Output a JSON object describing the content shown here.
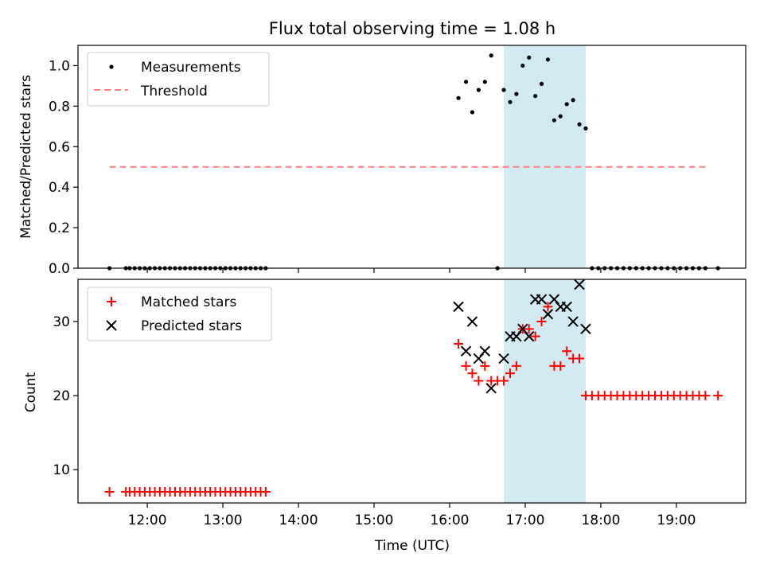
{
  "figure": {
    "title": "Flux total observing time = 1.08 h",
    "xlabel": "Time (UTC)"
  },
  "colors": {
    "highlight": "#add8e6",
    "measurement": "#000000",
    "threshold": "#ff7f7f",
    "matched": "#ff0000",
    "predicted": "#000000"
  },
  "chart_data": [
    {
      "type": "scatter",
      "ylabel": "Matched/Predicted stars",
      "xlim": [
        "11:05",
        "19:55"
      ],
      "ylim": [
        0,
        1.1
      ],
      "yticks": [
        0.0,
        0.2,
        0.4,
        0.6,
        0.8,
        1.0
      ],
      "xticks": [
        "12:00",
        "13:00",
        "14:00",
        "15:00",
        "16:00",
        "17:00",
        "18:00",
        "19:00"
      ],
      "show_xtick_labels": false,
      "legend": {
        "position": "top-left",
        "entries": [
          "Measurements",
          "Threshold"
        ]
      },
      "highlight_span": {
        "x": [
          "16:43",
          "17:48"
        ]
      },
      "threshold": {
        "name": "Threshold",
        "y": 0.5,
        "x": [
          "11:30",
          "19:25"
        ]
      },
      "series": [
        {
          "name": "Measurements",
          "marker": "dot",
          "points": [
            [
              "11:30",
              0
            ],
            [
              "11:43",
              0
            ],
            [
              "11:46",
              0
            ],
            [
              "11:50",
              0
            ],
            [
              "11:54",
              0
            ],
            [
              "11:58",
              0
            ],
            [
              "12:02",
              0
            ],
            [
              "12:06",
              0
            ],
            [
              "12:10",
              0
            ],
            [
              "12:14",
              0
            ],
            [
              "12:18",
              0
            ],
            [
              "12:22",
              0
            ],
            [
              "12:26",
              0
            ],
            [
              "12:30",
              0
            ],
            [
              "12:34",
              0
            ],
            [
              "12:38",
              0
            ],
            [
              "12:42",
              0
            ],
            [
              "12:46",
              0
            ],
            [
              "12:50",
              0
            ],
            [
              "12:54",
              0
            ],
            [
              "12:58",
              0
            ],
            [
              "13:02",
              0
            ],
            [
              "13:06",
              0
            ],
            [
              "13:10",
              0
            ],
            [
              "13:14",
              0
            ],
            [
              "13:18",
              0
            ],
            [
              "13:22",
              0
            ],
            [
              "13:26",
              0
            ],
            [
              "13:30",
              0
            ],
            [
              "13:34",
              0
            ],
            [
              "16:07",
              0.84
            ],
            [
              "16:13",
              0.92
            ],
            [
              "16:18",
              0.77
            ],
            [
              "16:23",
              0.88
            ],
            [
              "16:28",
              0.92
            ],
            [
              "16:33",
              1.05
            ],
            [
              "16:38",
              0
            ],
            [
              "16:43",
              0.88
            ],
            [
              "16:48",
              0.82
            ],
            [
              "16:53",
              0.86
            ],
            [
              "16:58",
              1.0
            ],
            [
              "17:03",
              1.04
            ],
            [
              "17:08",
              0.85
            ],
            [
              "17:13",
              0.91
            ],
            [
              "17:18",
              1.03
            ],
            [
              "17:23",
              0.73
            ],
            [
              "17:28",
              0.75
            ],
            [
              "17:33",
              0.81
            ],
            [
              "17:38",
              0.83
            ],
            [
              "17:43",
              0.71
            ],
            [
              "17:48",
              0.69
            ],
            [
              "17:53",
              0
            ],
            [
              "17:58",
              0
            ],
            [
              "18:03",
              0
            ],
            [
              "18:08",
              0
            ],
            [
              "18:13",
              0
            ],
            [
              "18:18",
              0
            ],
            [
              "18:23",
              0
            ],
            [
              "18:28",
              0
            ],
            [
              "18:33",
              0
            ],
            [
              "18:38",
              0
            ],
            [
              "18:43",
              0
            ],
            [
              "18:48",
              0
            ],
            [
              "18:53",
              0
            ],
            [
              "18:58",
              0
            ],
            [
              "19:03",
              0
            ],
            [
              "19:08",
              0
            ],
            [
              "19:13",
              0
            ],
            [
              "19:18",
              0
            ],
            [
              "19:23",
              0
            ],
            [
              "19:33",
              0
            ]
          ]
        }
      ]
    },
    {
      "type": "scatter",
      "ylabel": "Count",
      "xlim": [
        "11:05",
        "19:55"
      ],
      "ylim": [
        5.5,
        35.7
      ],
      "yticks": [
        10,
        20,
        30
      ],
      "xticks": [
        "12:00",
        "13:00",
        "14:00",
        "15:00",
        "16:00",
        "17:00",
        "18:00",
        "19:00"
      ],
      "show_xtick_labels": true,
      "legend": {
        "position": "top-left",
        "entries": [
          "Matched stars",
          "Predicted stars"
        ]
      },
      "highlight_span": {
        "x": [
          "16:43",
          "17:48"
        ]
      },
      "series": [
        {
          "name": "Matched stars",
          "marker": "plus",
          "points": [
            [
              "11:30",
              7
            ],
            [
              "11:43",
              7
            ],
            [
              "11:46",
              7
            ],
            [
              "11:50",
              7
            ],
            [
              "11:54",
              7
            ],
            [
              "11:58",
              7
            ],
            [
              "12:02",
              7
            ],
            [
              "12:06",
              7
            ],
            [
              "12:10",
              7
            ],
            [
              "12:14",
              7
            ],
            [
              "12:18",
              7
            ],
            [
              "12:22",
              7
            ],
            [
              "12:26",
              7
            ],
            [
              "12:30",
              7
            ],
            [
              "12:34",
              7
            ],
            [
              "12:38",
              7
            ],
            [
              "12:42",
              7
            ],
            [
              "12:46",
              7
            ],
            [
              "12:50",
              7
            ],
            [
              "12:54",
              7
            ],
            [
              "12:58",
              7
            ],
            [
              "13:02",
              7
            ],
            [
              "13:06",
              7
            ],
            [
              "13:10",
              7
            ],
            [
              "13:14",
              7
            ],
            [
              "13:18",
              7
            ],
            [
              "13:22",
              7
            ],
            [
              "13:26",
              7
            ],
            [
              "13:30",
              7
            ],
            [
              "13:34",
              7
            ],
            [
              "16:07",
              27
            ],
            [
              "16:13",
              24
            ],
            [
              "16:18",
              23
            ],
            [
              "16:23",
              22
            ],
            [
              "16:28",
              24
            ],
            [
              "16:33",
              22
            ],
            [
              "16:38",
              22
            ],
            [
              "16:43",
              22
            ],
            [
              "16:48",
              23
            ],
            [
              "16:53",
              24
            ],
            [
              "16:58",
              29
            ],
            [
              "17:03",
              29
            ],
            [
              "17:08",
              28
            ],
            [
              "17:13",
              30
            ],
            [
              "17:18",
              32
            ],
            [
              "17:23",
              24
            ],
            [
              "17:28",
              24
            ],
            [
              "17:33",
              26
            ],
            [
              "17:38",
              25
            ],
            [
              "17:43",
              25
            ],
            [
              "17:48",
              20
            ],
            [
              "17:53",
              20
            ],
            [
              "17:58",
              20
            ],
            [
              "18:03",
              20
            ],
            [
              "18:08",
              20
            ],
            [
              "18:13",
              20
            ],
            [
              "18:18",
              20
            ],
            [
              "18:23",
              20
            ],
            [
              "18:28",
              20
            ],
            [
              "18:33",
              20
            ],
            [
              "18:38",
              20
            ],
            [
              "18:43",
              20
            ],
            [
              "18:48",
              20
            ],
            [
              "18:53",
              20
            ],
            [
              "18:58",
              20
            ],
            [
              "19:03",
              20
            ],
            [
              "19:08",
              20
            ],
            [
              "19:13",
              20
            ],
            [
              "19:18",
              20
            ],
            [
              "19:23",
              20
            ],
            [
              "19:33",
              20
            ]
          ]
        },
        {
          "name": "Predicted stars",
          "marker": "x",
          "points": [
            [
              "16:07",
              32
            ],
            [
              "16:13",
              26
            ],
            [
              "16:18",
              30
            ],
            [
              "16:23",
              25
            ],
            [
              "16:28",
              26
            ],
            [
              "16:33",
              21
            ],
            [
              "16:43",
              25
            ],
            [
              "16:48",
              28
            ],
            [
              "16:53",
              28
            ],
            [
              "16:58",
              29
            ],
            [
              "17:03",
              28
            ],
            [
              "17:08",
              33
            ],
            [
              "17:13",
              33
            ],
            [
              "17:18",
              31
            ],
            [
              "17:23",
              33
            ],
            [
              "17:28",
              32
            ],
            [
              "17:33",
              32
            ],
            [
              "17:38",
              30
            ],
            [
              "17:43",
              35
            ],
            [
              "17:48",
              29
            ]
          ]
        }
      ]
    }
  ]
}
